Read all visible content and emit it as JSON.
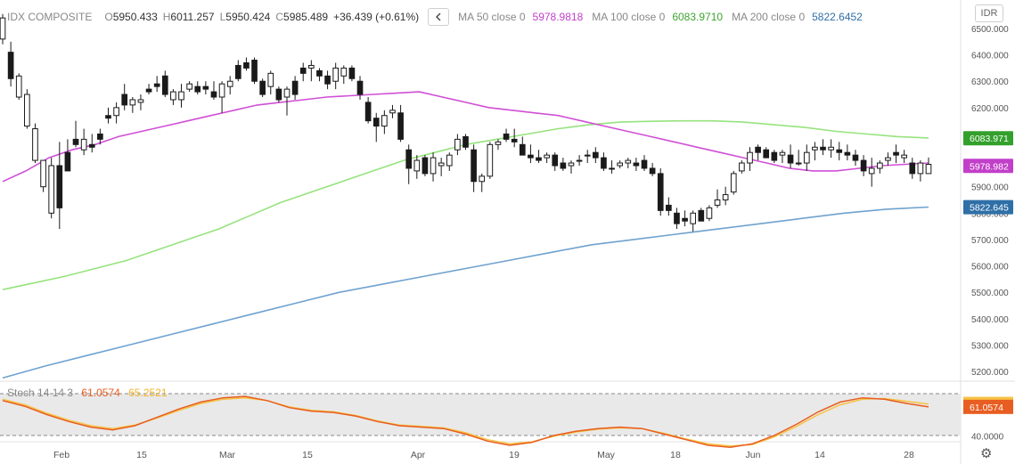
{
  "header": {
    "symbol": "IDX COMPOSITE",
    "open_label": "O",
    "open": "5950.433",
    "high_label": "H",
    "high": "6011.257",
    "low_label": "L",
    "low": "5950.424",
    "close_label": "C",
    "close": "5985.489",
    "change": "+36.439 (+0.61%)",
    "collapse_icon": "chevron-left-icon",
    "ma50_label": "MA 50 close 0",
    "ma50_value": "5978.9818",
    "ma100_label": "MA 100 close 0",
    "ma100_value": "6083.9710",
    "ma200_label": "MA 200 close 0",
    "ma200_value": "5822.6452",
    "currency": "IDR"
  },
  "stoch_legend": {
    "name": "Stoch 14 14 3",
    "k_value": "61.0574",
    "d_value": "65.2521"
  },
  "colors": {
    "ma50": "#d04fd6",
    "ma100": "#96e37d",
    "ma200": "#6fa2ce",
    "stoch_k": "#e85d21",
    "stoch_d": "#f6c244",
    "candle": "#1a1a1a",
    "ma200_badge": "#2f6fa7",
    "ma100_badge": "#33a02c"
  },
  "chart_data": [
    {
      "type": "candlestick",
      "title": "IDX COMPOSITE",
      "x_tick_labels": [
        "Feb",
        "15",
        "Mar",
        "15",
        "Apr",
        "19",
        "May",
        "18",
        "Jun",
        "14",
        "28"
      ],
      "y_tick_labels": [
        "6500.000",
        "6400.000",
        "6300.000",
        "6200.000",
        "6100.000",
        "6000.000",
        "5900.000",
        "5800.000",
        "5700.000",
        "5600.000",
        "5500.000",
        "5400.000",
        "5300.000",
        "5200.000"
      ],
      "ylim": [
        5170,
        6530
      ],
      "grid": false,
      "price_labels": {
        "ma100": "6083.971",
        "last": "5985.489",
        "ma50": "5978.982",
        "ma200": "5822.645"
      },
      "candles": [
        [
          6460,
          6555,
          6440,
          6540
        ],
        [
          6410,
          6450,
          6280,
          6310
        ],
        [
          6240,
          6330,
          6230,
          6320
        ],
        [
          6130,
          6270,
          6120,
          6250
        ],
        [
          6000,
          6140,
          5990,
          6120
        ],
        [
          5900,
          6000,
          5880,
          6000
        ],
        [
          5800,
          6010,
          5780,
          5980
        ],
        [
          5980,
          6070,
          5740,
          5820
        ],
        [
          6030,
          6080,
          5960,
          5960
        ],
        [
          6080,
          6150,
          6050,
          6060
        ],
        [
          6040,
          6120,
          6020,
          6080
        ],
        [
          6060,
          6100,
          6030,
          6050
        ],
        [
          6100,
          6120,
          6060,
          6080
        ],
        [
          6170,
          6200,
          6140,
          6160
        ],
        [
          6170,
          6220,
          6140,
          6200
        ],
        [
          6250,
          6290,
          6190,
          6210
        ],
        [
          6210,
          6240,
          6180,
          6230
        ],
        [
          6220,
          6250,
          6190,
          6230
        ],
        [
          6270,
          6290,
          6250,
          6260
        ],
        [
          6290,
          6320,
          6260,
          6280
        ],
        [
          6320,
          6340,
          6240,
          6250
        ],
        [
          6230,
          6270,
          6210,
          6260
        ],
        [
          6230,
          6290,
          6200,
          6260
        ],
        [
          6270,
          6300,
          6260,
          6290
        ],
        [
          6280,
          6300,
          6250,
          6260
        ],
        [
          6280,
          6300,
          6250,
          6270
        ],
        [
          6260,
          6300,
          6230,
          6240
        ],
        [
          6240,
          6300,
          6180,
          6290
        ],
        [
          6280,
          6320,
          6250,
          6300
        ],
        [
          6360,
          6380,
          6300,
          6310
        ],
        [
          6370,
          6390,
          6340,
          6350
        ],
        [
          6380,
          6390,
          6290,
          6300
        ],
        [
          6300,
          6310,
          6240,
          6250
        ],
        [
          6280,
          6340,
          6250,
          6330
        ],
        [
          6270,
          6280,
          6220,
          6230
        ],
        [
          6240,
          6280,
          6170,
          6270
        ],
        [
          6300,
          6320,
          6230,
          6250
        ],
        [
          6350,
          6370,
          6300,
          6330
        ],
        [
          6350,
          6380,
          6300,
          6360
        ],
        [
          6340,
          6350,
          6300,
          6320
        ],
        [
          6320,
          6340,
          6270,
          6290
        ],
        [
          6300,
          6370,
          6270,
          6350
        ],
        [
          6320,
          6360,
          6290,
          6350
        ],
        [
          6350,
          6360,
          6300,
          6310
        ],
        [
          6300,
          6320,
          6230,
          6250
        ],
        [
          6220,
          6240,
          6140,
          6150
        ],
        [
          6160,
          6180,
          6070,
          6130
        ],
        [
          6130,
          6190,
          6100,
          6170
        ],
        [
          6180,
          6210,
          6160,
          6190
        ],
        [
          6180,
          6210,
          6070,
          6080
        ],
        [
          6040,
          6060,
          5910,
          5970
        ],
        [
          5960,
          6020,
          5930,
          6000
        ],
        [
          6010,
          6020,
          5940,
          5950
        ],
        [
          5950,
          6030,
          5920,
          6010
        ],
        [
          5980,
          6010,
          5940,
          5990
        ],
        [
          5980,
          6030,
          5960,
          6020
        ],
        [
          6040,
          6100,
          6020,
          6080
        ],
        [
          6090,
          6100,
          6040,
          6050
        ],
        [
          6040,
          6060,
          5880,
          5920
        ],
        [
          5920,
          5950,
          5880,
          5940
        ],
        [
          5940,
          6070,
          5930,
          6060
        ],
        [
          6060,
          6080,
          6040,
          6070
        ],
        [
          6100,
          6120,
          6070,
          6080
        ],
        [
          6080,
          6120,
          6050,
          6070
        ],
        [
          6060,
          6090,
          6020,
          6020
        ],
        [
          6020,
          6060,
          5990,
          6010
        ],
        [
          6010,
          6040,
          5990,
          6000
        ],
        [
          6010,
          6030,
          5990,
          6020
        ],
        [
          6020,
          6030,
          5960,
          5980
        ],
        [
          5990,
          6010,
          5960,
          5970
        ],
        [
          5980,
          6000,
          5950,
          5990
        ],
        [
          6000,
          6020,
          5980,
          6000
        ],
        [
          6020,
          6040,
          5990,
          6020
        ],
        [
          6030,
          6050,
          5990,
          6010
        ],
        [
          6010,
          6030,
          5960,
          5970
        ],
        [
          5970,
          6000,
          5950,
          5970
        ],
        [
          5980,
          6000,
          5970,
          5990
        ],
        [
          5990,
          6010,
          5970,
          6000
        ],
        [
          5990,
          6010,
          5960,
          5980
        ],
        [
          6000,
          6020,
          5960,
          5970
        ],
        [
          5970,
          5990,
          5940,
          5950
        ],
        [
          5950,
          5970,
          5790,
          5810
        ],
        [
          5830,
          5860,
          5790,
          5810
        ],
        [
          5800,
          5820,
          5740,
          5760
        ],
        [
          5780,
          5810,
          5750,
          5770
        ],
        [
          5760,
          5810,
          5730,
          5800
        ],
        [
          5810,
          5820,
          5770,
          5770
        ],
        [
          5780,
          5830,
          5770,
          5820
        ],
        [
          5830,
          5890,
          5820,
          5850
        ],
        [
          5850,
          5900,
          5830,
          5870
        ],
        [
          5880,
          5960,
          5870,
          5950
        ],
        [
          5960,
          6000,
          5950,
          5990
        ],
        [
          5990,
          6050,
          5960,
          6030
        ],
        [
          6050,
          6060,
          6000,
          6030
        ],
        [
          6040,
          6050,
          6010,
          6010
        ],
        [
          6030,
          6040,
          5990,
          6000
        ],
        [
          6020,
          6040,
          5990,
          6030
        ],
        [
          6020,
          6060,
          5970,
          5990
        ],
        [
          5990,
          6040,
          5980,
          5990
        ],
        [
          5990,
          6060,
          5960,
          6030
        ],
        [
          6040,
          6070,
          6000,
          6050
        ],
        [
          6050,
          6080,
          6020,
          6040
        ],
        [
          6040,
          6080,
          6010,
          6050
        ],
        [
          6040,
          6070,
          6000,
          6030
        ],
        [
          6030,
          6060,
          6000,
          6020
        ],
        [
          6020,
          6040,
          5980,
          6000
        ],
        [
          6000,
          6020,
          5940,
          5960
        ],
        [
          5950,
          6010,
          5900,
          5970
        ],
        [
          5970,
          6000,
          5950,
          5990
        ],
        [
          6000,
          6030,
          5980,
          6010
        ],
        [
          6030,
          6060,
          5990,
          6020
        ],
        [
          6010,
          6040,
          5990,
          6020
        ],
        [
          5990,
          6010,
          5930,
          5950
        ],
        [
          5950,
          6000,
          5920,
          5990
        ],
        [
          5950,
          6011,
          5950,
          5985
        ]
      ],
      "ma50": [
        5920,
        5960,
        6010,
        6040,
        6060,
        6090,
        6110,
        6130,
        6150,
        6170,
        6190,
        6210,
        6220,
        6230,
        6240,
        6245,
        6250,
        6255,
        6260,
        6240,
        6220,
        6200,
        6190,
        6180,
        6170,
        6150,
        6130,
        6110,
        6090,
        6070,
        6050,
        6030,
        6010,
        5990,
        5970,
        5960,
        5960,
        5970,
        5980,
        5985,
        5990
      ],
      "ma100": [
        5510,
        5535,
        5560,
        5590,
        5620,
        5660,
        5700,
        5740,
        5790,
        5840,
        5880,
        5920,
        5960,
        6000,
        6030,
        6060,
        6080,
        6100,
        6120,
        6135,
        6145,
        6148,
        6150,
        6150,
        6145,
        6135,
        6125,
        6110,
        6100,
        6090,
        6085
      ],
      "ma200": [
        5175,
        5220,
        5260,
        5300,
        5340,
        5380,
        5420,
        5460,
        5500,
        5530,
        5560,
        5590,
        5620,
        5650,
        5680,
        5700,
        5720,
        5740,
        5760,
        5780,
        5800,
        5815,
        5823
      ]
    },
    {
      "type": "line",
      "title": "Stoch 14 14 3",
      "y_tick_labels": [
        "65.2521",
        "61.0574",
        "40.0000"
      ],
      "bands": [
        80,
        20
      ],
      "series": [
        {
          "name": "%K",
          "values": [
            70,
            62,
            50,
            40,
            32,
            28,
            34,
            46,
            58,
            68,
            74,
            76,
            70,
            60,
            55,
            53,
            48,
            40,
            34,
            32,
            30,
            22,
            12,
            6,
            10,
            20,
            26,
            30,
            32,
            30,
            22,
            14,
            6,
            3,
            8,
            20,
            36,
            54,
            68,
            74,
            72,
            66,
            61
          ]
        },
        {
          "name": "%D",
          "values": [
            72,
            64,
            52,
            42,
            34,
            30,
            35,
            45,
            56,
            66,
            72,
            74,
            70,
            61,
            56,
            54,
            49,
            41,
            35,
            33,
            31,
            24,
            14,
            8,
            11,
            19,
            25,
            29,
            31,
            30,
            23,
            15,
            8,
            5,
            7,
            18,
            33,
            50,
            64,
            72,
            73,
            69,
            65
          ]
        }
      ]
    }
  ]
}
